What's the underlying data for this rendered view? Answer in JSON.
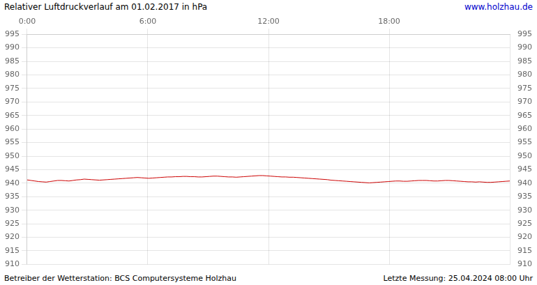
{
  "chart_data": {
    "type": "line",
    "title": "Relativer Luftdruckverlauf am 01.02.2017 in hPa",
    "annotations": [
      "www.holzhau.de",
      "Betreiber der Wetterstation: BCS Computersysteme Holzhau",
      "Letzte Messung: 25.04.2024 08:00 Uhr"
    ],
    "color": "#cc0000",
    "grid": true,
    "xlim": [
      0,
      24
    ],
    "xticks": [
      {
        "value": 0,
        "label": "0:00"
      },
      {
        "value": 6,
        "label": "6:00"
      },
      {
        "value": 12,
        "label": "12:00"
      },
      {
        "value": 18,
        "label": "18:00"
      }
    ],
    "ylim": [
      910,
      995
    ],
    "yticks": [
      910,
      915,
      920,
      925,
      930,
      935,
      940,
      945,
      950,
      955,
      960,
      965,
      970,
      975,
      980,
      985,
      990,
      995
    ],
    "y2lim": [
      910,
      995
    ],
    "y2ticks": [
      910,
      915,
      920,
      925,
      930,
      935,
      940,
      945,
      950,
      955,
      960,
      965,
      970,
      975,
      980,
      985,
      990,
      995
    ],
    "x": [
      0,
      0.18898,
      0.37795,
      0.56693,
      0.75591,
      0.94488,
      1.13386,
      1.32283,
      1.51181,
      1.70079,
      1.88976,
      2.07874,
      2.26772,
      2.45669,
      2.64567,
      2.83465,
      3.02362,
      3.2126,
      3.40157,
      3.59055,
      3.77953,
      3.9685,
      4.15748,
      4.34646,
      4.53543,
      4.72441,
      4.91339,
      5.10236,
      5.29134,
      5.48031,
      5.66929,
      5.85827,
      6.04724,
      6.23622,
      6.4252,
      6.61417,
      6.80315,
      6.99213,
      7.1811,
      7.37008,
      7.55906,
      7.74803,
      7.93701,
      8.12598,
      8.31496,
      8.50394,
      8.69291,
      8.88189,
      9.07087,
      9.25984,
      9.44882,
      9.6378,
      9.82677,
      10.01575,
      10.20472,
      10.3937,
      10.58268,
      10.77165,
      10.96063,
      11.14961,
      11.33858,
      11.52756,
      11.71654,
      11.90551,
      12.09449,
      12.28346,
      12.47244,
      12.66142,
      12.85039,
      13.03937,
      13.22835,
      13.41732,
      13.6063,
      13.79528,
      13.98425,
      14.17323,
      14.3622,
      14.55118,
      14.74016,
      14.92913,
      15.11811,
      15.30709,
      15.49606,
      15.68504,
      15.87402,
      16.06299,
      16.25197,
      16.44094,
      16.62992,
      16.8189,
      17.00787,
      17.19685,
      17.38583,
      17.5748,
      17.76378,
      17.95276,
      18.14173,
      18.33071,
      18.51969,
      18.70866,
      18.89764,
      19.08661,
      19.27559,
      19.46457,
      19.65354,
      19.84252,
      20.0315,
      20.22047,
      20.40945,
      20.59843,
      20.7874,
      20.97638,
      21.16535,
      21.35433,
      21.54331,
      21.73228,
      21.92126,
      22.11024,
      22.29921,
      22.48819,
      22.67717,
      22.86614,
      23.05512,
      23.24409,
      23.43307,
      23.62205,
      23.81102,
      24
    ],
    "values": [
      941.2,
      941.0,
      940.8,
      940.6,
      940.5,
      940.4,
      940.6,
      940.8,
      941.0,
      941.0,
      940.9,
      940.8,
      941.0,
      941.2,
      941.3,
      941.5,
      941.4,
      941.3,
      941.2,
      941.1,
      941.2,
      941.3,
      941.4,
      941.5,
      941.6,
      941.7,
      941.8,
      941.9,
      942.0,
      942.1,
      942.0,
      941.9,
      941.8,
      941.9,
      942.0,
      942.1,
      942.2,
      942.3,
      942.3,
      942.4,
      942.4,
      942.5,
      942.5,
      942.4,
      942.4,
      942.3,
      942.3,
      942.4,
      942.5,
      942.6,
      942.6,
      942.5,
      942.4,
      942.3,
      942.3,
      942.2,
      942.3,
      942.4,
      942.5,
      942.6,
      942.7,
      942.8,
      942.8,
      942.7,
      942.6,
      942.5,
      942.4,
      942.3,
      942.3,
      942.2,
      942.2,
      942.1,
      942.0,
      941.9,
      941.8,
      941.7,
      941.6,
      941.5,
      941.4,
      941.3,
      941.1,
      941.0,
      940.9,
      940.8,
      940.7,
      940.6,
      940.5,
      940.4,
      940.3,
      940.2,
      940.1,
      940.2,
      940.3,
      940.4,
      940.5,
      940.6,
      940.7,
      940.8,
      940.8,
      940.7,
      940.7,
      940.8,
      940.9,
      941.0,
      941.0,
      941.0,
      940.9,
      940.8,
      940.8,
      940.9,
      941.0,
      941.0,
      940.9,
      940.8,
      940.7,
      940.6,
      940.5,
      940.5,
      940.4,
      940.5,
      940.4,
      940.3,
      940.3,
      940.4,
      940.5,
      940.6,
      940.7,
      940.8
    ]
  }
}
